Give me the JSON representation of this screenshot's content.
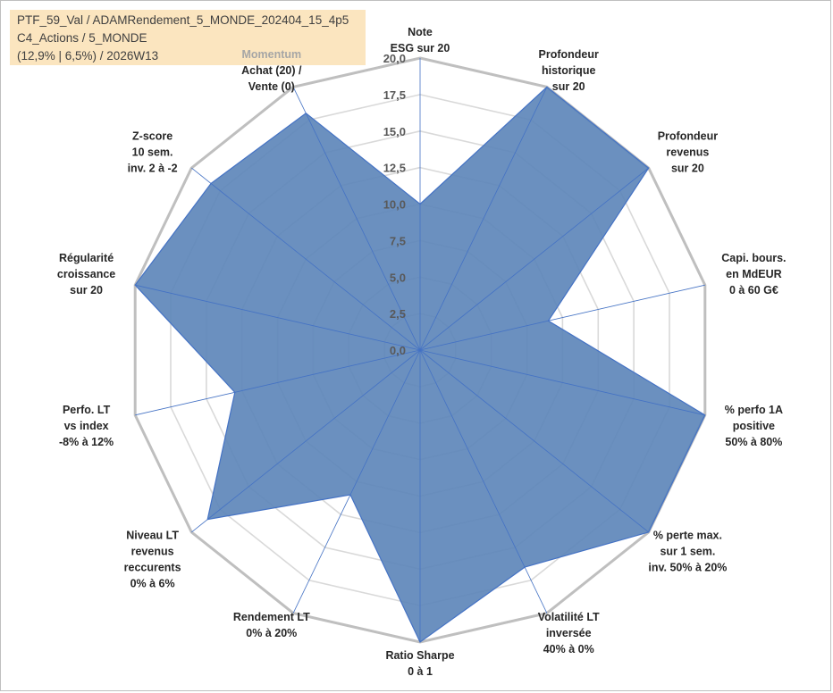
{
  "chart_data": {
    "type": "radar",
    "title_lines": [
      "PTF_59_Val / ADAMRendement_5_MONDE_202404_15_4p5",
      "C4_Actions / 5_MONDE",
      "(12,9% | 6,5%) / 2026W13"
    ],
    "r_range": [
      0,
      20
    ],
    "r_ticks": [
      "0,0",
      "2,5",
      "5,0",
      "7,5",
      "10,0",
      "12,5",
      "15,0",
      "17,5",
      "20,0"
    ],
    "axes": [
      {
        "label_lines": [
          "Note",
          "ESG sur 20"
        ],
        "value": 10.0
      },
      {
        "label_lines": [
          "Profondeur",
          "historique",
          "sur 20"
        ],
        "value": 20.0
      },
      {
        "label_lines": [
          "Profondeur",
          "revenus",
          "sur 20"
        ],
        "value": 20.0
      },
      {
        "label_lines": [
          "Capi. bours.",
          "en MdEUR",
          "0 à 60 G€"
        ],
        "value": 9.0
      },
      {
        "label_lines": [
          "% perfo 1A",
          "positive",
          "50% à 80%"
        ],
        "value": 20.0
      },
      {
        "label_lines": [
          "% perte max.",
          "sur 1 sem.",
          "inv. 50% à 20%"
        ],
        "value": 20.0
      },
      {
        "label_lines": [
          "Volatilité LT",
          "inversée",
          "40% à 0%"
        ],
        "value": 16.5
      },
      {
        "label_lines": [
          "Ratio Sharpe",
          "0 à 1"
        ],
        "value": 20.0
      },
      {
        "label_lines": [
          "Rendement LT",
          "0% à 20%"
        ],
        "value": 11.0
      },
      {
        "label_lines": [
          "Niveau LT",
          "revenus",
          "reccurents",
          "0% à 6%"
        ],
        "value": 18.6
      },
      {
        "label_lines": [
          "Perfo. LT",
          "vs index",
          "-8% à 12%"
        ],
        "value": 13.0
      },
      {
        "label_lines": [
          "Régularité",
          "croissance",
          "sur 20"
        ],
        "value": 20.0
      },
      {
        "label_lines": [
          "Z-score",
          "10 sem.",
          "inv. 2 à -2"
        ],
        "value": 18.3
      },
      {
        "label_lines": [
          "Momentum",
          "Achat (20) /",
          "Vente (0)"
        ],
        "value": 18.0
      }
    ],
    "grid": true,
    "legend": "none",
    "colors": {
      "fill": "#5b84b8",
      "outline": "#4472c4",
      "grid": "#d9d9d9",
      "outer_ring": "#bfbfbf",
      "spoke": "#4472c4"
    }
  }
}
